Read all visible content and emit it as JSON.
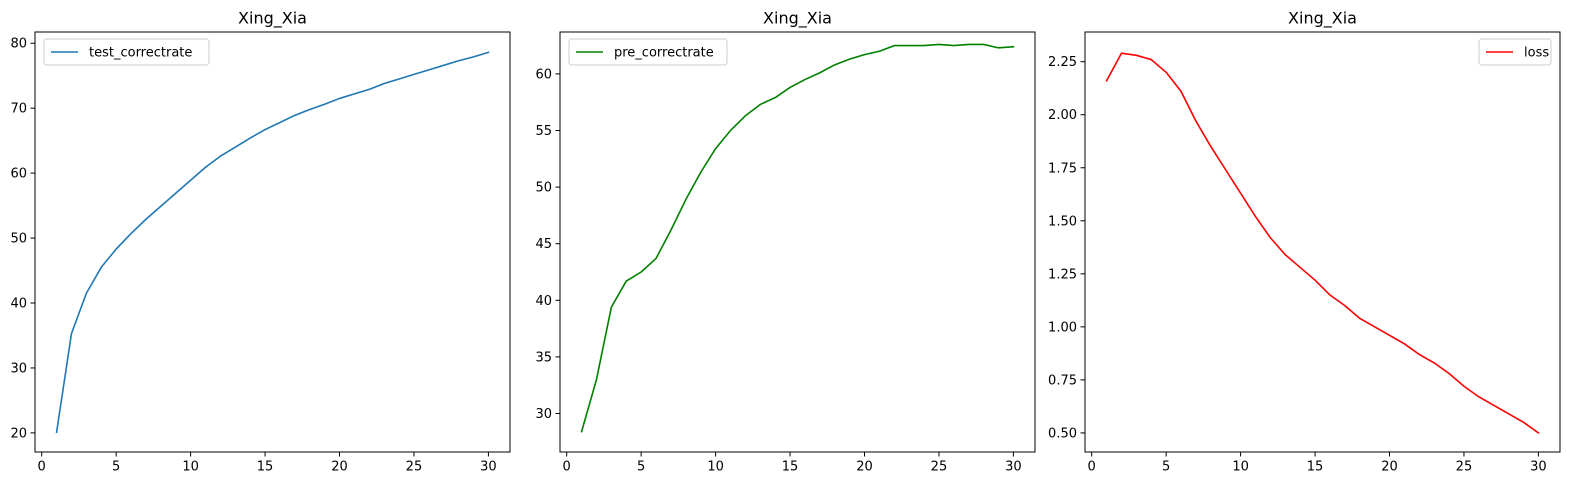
{
  "chart_data": [
    {
      "type": "line",
      "title": "Xing_Xia",
      "xlabel": "",
      "ylabel": "",
      "xlim": [
        -0.45,
        31.45
      ],
      "ylim": [
        17.06,
        81.73
      ],
      "xticks": [
        0,
        5,
        10,
        15,
        20,
        25,
        30
      ],
      "yticks": [
        20,
        30,
        40,
        50,
        60,
        70,
        80
      ],
      "ytick_labels": [
        "20",
        "30",
        "40",
        "50",
        "60",
        "70",
        "80"
      ],
      "grid": false,
      "legend_position": "upper-left",
      "series": [
        {
          "name": "test_correctrate",
          "color": "#1f77b4",
          "x": [
            1,
            2,
            3,
            4,
            5,
            6,
            7,
            8,
            9,
            10,
            11,
            12,
            13,
            14,
            15,
            16,
            17,
            18,
            19,
            20,
            21,
            22,
            23,
            24,
            25,
            26,
            27,
            28,
            29,
            30
          ],
          "y": [
            20.1,
            35.3,
            41.5,
            45.5,
            48.3,
            50.7,
            52.9,
            54.9,
            56.9,
            58.9,
            60.9,
            62.6,
            64.0,
            65.4,
            66.7,
            67.8,
            68.9,
            69.8,
            70.6,
            71.5,
            72.2,
            72.9,
            73.8,
            74.5,
            75.2,
            75.9,
            76.6,
            77.3,
            77.9,
            78.6
          ]
        }
      ]
    },
    {
      "type": "line",
      "title": "Xing_Xia",
      "xlabel": "",
      "ylabel": "",
      "xlim": [
        -0.45,
        31.45
      ],
      "ylim": [
        26.6,
        63.7
      ],
      "xticks": [
        0,
        5,
        10,
        15,
        20,
        25,
        30
      ],
      "yticks": [
        30,
        35,
        40,
        45,
        50,
        55,
        60
      ],
      "ytick_labels": [
        "30",
        "35",
        "40",
        "45",
        "50",
        "55",
        "60"
      ],
      "grid": false,
      "legend_position": "upper-left",
      "series": [
        {
          "name": "pre_correctrate",
          "color": "#008000",
          "x": [
            1,
            2,
            3,
            4,
            5,
            6,
            7,
            8,
            9,
            10,
            11,
            12,
            13,
            14,
            15,
            16,
            17,
            18,
            19,
            20,
            21,
            22,
            23,
            24,
            25,
            26,
            27,
            28,
            29,
            30
          ],
          "y": [
            28.4,
            33.0,
            39.4,
            41.7,
            42.5,
            43.7,
            46.2,
            48.9,
            51.3,
            53.4,
            55.0,
            56.3,
            57.3,
            57.9,
            58.8,
            59.5,
            60.1,
            60.8,
            61.3,
            61.7,
            62.0,
            62.5,
            62.5,
            62.5,
            62.6,
            62.5,
            62.6,
            62.6,
            62.3,
            62.4
          ]
        }
      ]
    },
    {
      "type": "line",
      "title": "Xing_Xia",
      "xlabel": "",
      "ylabel": "",
      "xlim": [
        -0.45,
        31.45
      ],
      "ylim": [
        0.41,
        2.39
      ],
      "xticks": [
        0,
        5,
        10,
        15,
        20,
        25,
        30
      ],
      "yticks": [
        0.5,
        0.75,
        1.0,
        1.25,
        1.5,
        1.75,
        2.0,
        2.25
      ],
      "ytick_labels": [
        "0.50",
        "0.75",
        "1.00",
        "1.25",
        "1.50",
        "1.75",
        "2.00",
        "2.25"
      ],
      "grid": false,
      "legend_position": "upper-right",
      "series": [
        {
          "name": "loss",
          "color": "#ff0000",
          "x": [
            1,
            2,
            3,
            4,
            5,
            6,
            7,
            8,
            9,
            10,
            11,
            12,
            13,
            14,
            15,
            16,
            17,
            18,
            19,
            20,
            21,
            22,
            23,
            24,
            25,
            26,
            27,
            28,
            29,
            30
          ],
          "y": [
            2.16,
            2.29,
            2.28,
            2.26,
            2.2,
            2.11,
            1.97,
            1.85,
            1.74,
            1.63,
            1.52,
            1.42,
            1.34,
            1.28,
            1.22,
            1.15,
            1.1,
            1.04,
            1.0,
            0.96,
            0.92,
            0.87,
            0.83,
            0.78,
            0.72,
            0.67,
            0.63,
            0.59,
            0.55,
            0.5
          ]
        }
      ]
    }
  ]
}
